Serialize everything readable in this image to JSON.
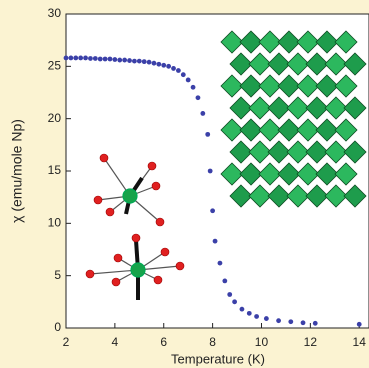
{
  "chart_data": {
    "type": "scatter",
    "xlabel": "Temperature (K)",
    "ylabel": "χ (emu/mole Np)",
    "x": [
      2.0,
      2.2,
      2.4,
      2.6,
      2.8,
      3.0,
      3.2,
      3.4,
      3.6,
      3.8,
      4.0,
      4.2,
      4.4,
      4.6,
      4.8,
      5.0,
      5.2,
      5.4,
      5.6,
      5.8,
      6.0,
      6.2,
      6.4,
      6.6,
      6.8,
      7.0,
      7.2,
      7.4,
      7.6,
      7.8,
      7.9,
      8.0,
      8.1,
      8.3,
      8.5,
      8.7,
      8.9,
      9.2,
      9.5,
      9.8,
      10.2,
      10.7,
      11.2,
      11.7,
      12.2,
      14.0
    ],
    "values": [
      25.8,
      25.8,
      25.8,
      25.8,
      25.8,
      25.75,
      25.75,
      25.7,
      25.7,
      25.7,
      25.65,
      25.6,
      25.6,
      25.55,
      25.5,
      25.5,
      25.45,
      25.4,
      25.3,
      25.2,
      25.1,
      25.0,
      24.8,
      24.6,
      24.2,
      23.7,
      23.0,
      22.0,
      20.5,
      18.5,
      15.0,
      11.2,
      8.3,
      6.2,
      4.5,
      3.2,
      2.5,
      1.8,
      1.4,
      1.1,
      0.9,
      0.7,
      0.6,
      0.5,
      0.45,
      0.35
    ],
    "color": "#3b40a8",
    "xlim": [
      2,
      14.4
    ],
    "ylim": [
      0,
      30
    ],
    "xticks": [
      2,
      4,
      6,
      8,
      10,
      12,
      14
    ],
    "yticks": [
      0,
      5,
      10,
      15,
      20,
      25,
      30
    ]
  }
}
